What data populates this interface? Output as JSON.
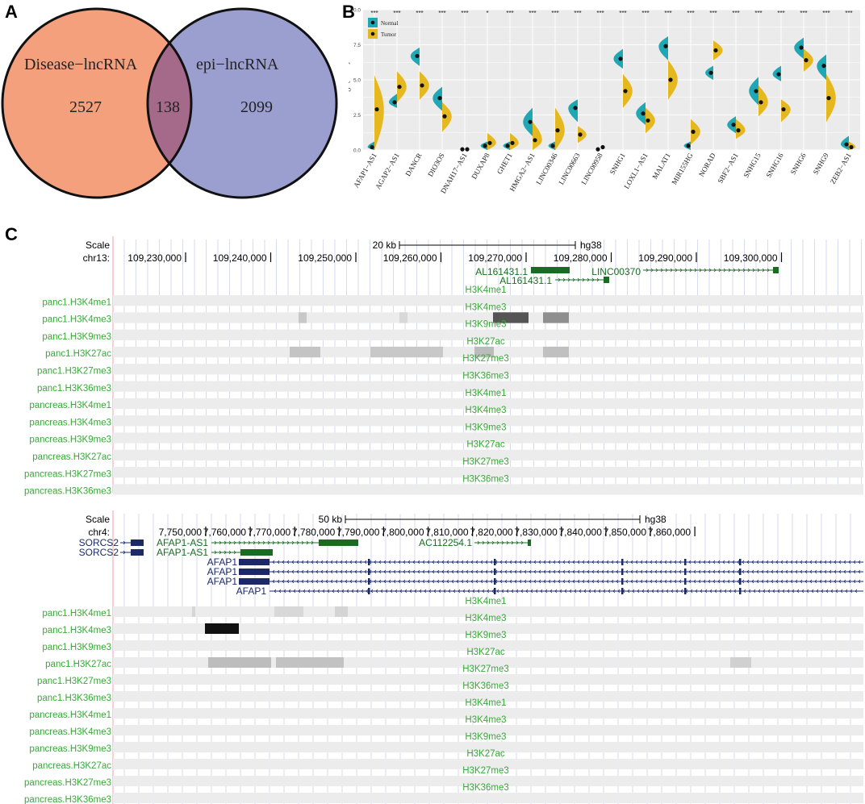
{
  "panel_labels": {
    "a": "A",
    "b": "B",
    "c": "C"
  },
  "venn": {
    "left_label": "Disease−lncRNA",
    "right_label": "epi−lncRNA",
    "left_count": "2527",
    "overlap_count": "138",
    "right_count": "2099",
    "colors": {
      "left": "#f4a07d",
      "right": "#9b9fd0",
      "overlap": "#a56a8a"
    }
  },
  "chart_data": {
    "type": "split-violin",
    "ylabel": "log2(TPM)",
    "ylim": [
      0,
      10
    ],
    "yticks": [
      "0.0",
      "2.5",
      "5.0",
      "7.5",
      "10.0"
    ],
    "categories": [
      "AFAP1−AS1",
      "AGAP2−AS1",
      "DANCR",
      "DIO3OS",
      "DNAH17−AS1",
      "DUXAP8",
      "GHET1",
      "HMGA2−AS1",
      "LINC00346",
      "LINC00663",
      "LINC00958",
      "SNHG1",
      "LOXL1−AS1",
      "MALAT1",
      "MIR155HG",
      "NORAD",
      "SBF2−AS1",
      "SNHG15",
      "SNHG16",
      "SNHG6",
      "SNHG9",
      "ZEB2−AS1"
    ],
    "significance": [
      "***",
      "***",
      "***",
      "***",
      "***",
      "*",
      "***",
      "***",
      "***",
      "***",
      "***",
      "***",
      "***",
      "***",
      "***",
      "***",
      "***",
      "***",
      "***",
      "***",
      "***",
      "***"
    ],
    "legend": [
      "Normal",
      "Tumor"
    ],
    "legend_position": "top-left",
    "series": [
      {
        "name": "Normal",
        "color": "#1fa7b4",
        "medians": [
          0.2,
          3.4,
          6.7,
          3.7,
          0.05,
          0.3,
          0.3,
          2.0,
          0.3,
          3.0,
          0.05,
          6.5,
          2.6,
          7.4,
          0.3,
          5.5,
          1.8,
          4.2,
          5.4,
          7.3,
          6.0,
          0.4
        ],
        "ranges": [
          [
            0,
            0.6
          ],
          [
            3.0,
            4.0
          ],
          [
            6.0,
            7.3
          ],
          [
            2.8,
            4.5
          ],
          [
            0,
            0.2
          ],
          [
            0,
            0.6
          ],
          [
            0,
            0.6
          ],
          [
            1.0,
            3.0
          ],
          [
            0,
            0.6
          ],
          [
            2.0,
            3.6
          ],
          [
            0,
            0.2
          ],
          [
            5.8,
            7.2
          ],
          [
            1.8,
            3.4
          ],
          [
            6.4,
            8.1
          ],
          [
            0,
            0.6
          ],
          [
            5.0,
            6.0
          ],
          [
            1.2,
            2.4
          ],
          [
            3.2,
            5.2
          ],
          [
            4.9,
            6.0
          ],
          [
            6.5,
            8.0
          ],
          [
            5.0,
            6.8
          ],
          [
            0,
            1.0
          ]
        ]
      },
      {
        "name": "Tumor",
        "color": "#e6b820",
        "medians": [
          2.9,
          4.5,
          4.6,
          2.4,
          0.05,
          0.5,
          0.5,
          0.7,
          1.4,
          1.1,
          0.2,
          4.2,
          2.1,
          5.0,
          1.3,
          7.1,
          1.4,
          3.4,
          2.9,
          6.4,
          3.7,
          0.2
        ],
        "ranges": [
          [
            0,
            5.3
          ],
          [
            3.4,
            5.6
          ],
          [
            3.6,
            5.6
          ],
          [
            1.3,
            3.4
          ],
          [
            0,
            0.2
          ],
          [
            0,
            1.2
          ],
          [
            0,
            1.2
          ],
          [
            0,
            2.0
          ],
          [
            0,
            3.0
          ],
          [
            0.5,
            1.7
          ],
          [
            0,
            0.4
          ],
          [
            3.0,
            5.4
          ],
          [
            1.2,
            3.0
          ],
          [
            3.6,
            6.4
          ],
          [
            0.4,
            2.2
          ],
          [
            6.4,
            7.8
          ],
          [
            0.8,
            2.2
          ],
          [
            2.4,
            4.6
          ],
          [
            2.0,
            3.6
          ],
          [
            5.6,
            7.2
          ],
          [
            2.0,
            5.4
          ],
          [
            0,
            0.6
          ]
        ]
      }
    ]
  },
  "browser1": {
    "scale_label": "Scale",
    "chrom": "chr13:",
    "scale_bar": "20 kb",
    "assembly": "hg38",
    "positions": [
      "109,230,000",
      "109,240,000",
      "109,250,000",
      "109,260,000",
      "109,270,000",
      "109,280,000",
      "109,290,000",
      "109,300,000"
    ],
    "genes": [
      "AL161431.1",
      "AL161431.1",
      "LINC00370"
    ],
    "tracks": [
      "panc1.H3K4me1",
      "panc1.H3K4me3",
      "panc1.H3K9me3",
      "panc1.H3K27ac",
      "panc1.H3K27me3",
      "panc1.H3K36me3",
      "pancreas.H3K4me1",
      "pancreas.H3K4me3",
      "pancreas.H3K9me3",
      "pancreas.H3K27ac",
      "pancreas.H3K27me3",
      "pancreas.H3K36me3"
    ],
    "center_labels": [
      "H3K4me1",
      "H3K4me3",
      "H3K9me3",
      "H3K27ac",
      "H3K27me3",
      "H3K36me3",
      "H3K4me1",
      "H3K4me3",
      "H3K9me3",
      "H3K27ac",
      "H3K27me3",
      "H3K36me3"
    ]
  },
  "browser2": {
    "scale_label": "Scale",
    "chrom": "chr4:",
    "scale_bar": "50 kb",
    "assembly": "hg38",
    "positions": [
      "7,750,000",
      "7,760,000",
      "7,770,000",
      "7,780,000",
      "7,790,000",
      "7,800,000",
      "7,810,000",
      "7,820,000",
      "7,830,000",
      "7,840,000",
      "7,850,000",
      "7,860,000"
    ],
    "genes_left": [
      "SORCS2",
      "SORCS2"
    ],
    "genes_mid": [
      "AFAP1-AS1",
      "AFAP1-AS1",
      "AC112254.1"
    ],
    "genes_afap": [
      "AFAP1",
      "AFAP1",
      "AFAP1",
      "AFAP1"
    ],
    "tracks": [
      "panc1.H3K4me1",
      "panc1.H3K4me3",
      "panc1.H3K9me3",
      "panc1.H3K27ac",
      "panc1.H3K27me3",
      "panc1.H3K36me3",
      "pancreas.H3K4me1",
      "pancreas.H3K4me3",
      "pancreas.H3K9me3",
      "pancreas.H3K27ac",
      "pancreas.H3K27me3",
      "pancreas.H3K36me3"
    ],
    "center_labels": [
      "H3K4me1",
      "H3K4me3",
      "H3K9me3",
      "H3K27ac",
      "H3K27me3",
      "H3K36me3",
      "H3K4me1",
      "H3K4me3",
      "H3K9me3",
      "H3K27ac",
      "H3K27me3",
      "H3K36me3"
    ]
  }
}
